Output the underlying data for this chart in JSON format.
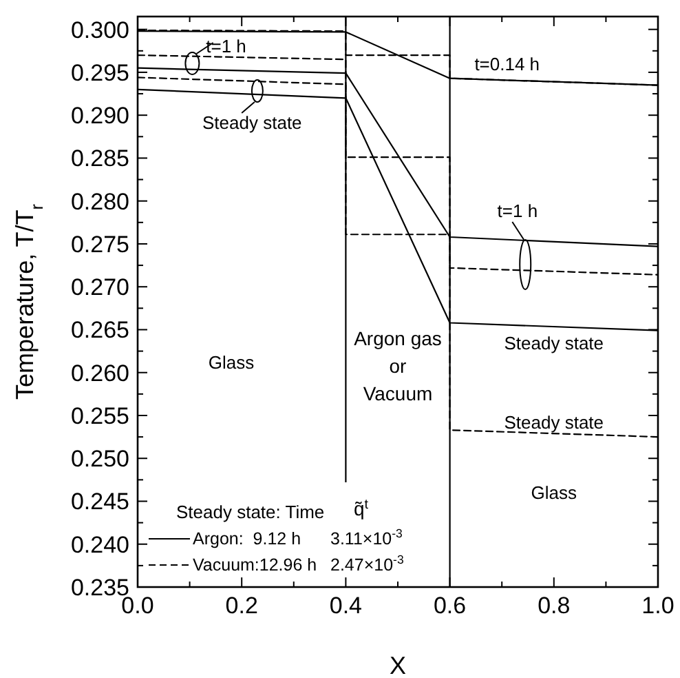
{
  "chart_data": {
    "type": "line",
    "xlabel": "X",
    "ylabel": "Temperature, T/T$_{r}$",
    "legend_title": "Steady state: Time",
    "legend": "bottom left",
    "grid": false,
    "marker": "none",
    "xlim": [
      0,
      1
    ],
    "ylim": [
      0.235,
      0.3015
    ],
    "xticks": [
      {
        "value": 0,
        "label": "0.0"
      },
      {
        "value": 0.1,
        "label": null
      },
      {
        "value": 0.2,
        "label": "0.2"
      },
      {
        "value": 0.3,
        "label": null
      },
      {
        "value": 0.4,
        "label": "0.4"
      },
      {
        "value": 0.5,
        "label": null
      },
      {
        "value": 0.6,
        "label": "0.6"
      },
      {
        "value": 0.7,
        "label": null
      },
      {
        "value": 0.8,
        "label": "0.8"
      },
      {
        "value": 0.9,
        "label": null
      },
      {
        "value": 1,
        "label": "1.0"
      }
    ],
    "yticks": [
      {
        "value": 0.235,
        "label": "0.235"
      },
      {
        "value": 0.2375,
        "label": null
      },
      {
        "value": 0.24,
        "label": "0.240"
      },
      {
        "value": 0.2425,
        "label": null
      },
      {
        "value": 0.245,
        "label": "0.245"
      },
      {
        "value": 0.2475,
        "label": null
      },
      {
        "value": 0.25,
        "label": "0.250"
      },
      {
        "value": 0.2525,
        "label": null
      },
      {
        "value": 0.255,
        "label": "0.255"
      },
      {
        "value": 0.2575,
        "label": null
      },
      {
        "value": 0.26,
        "label": "0.260"
      },
      {
        "value": 0.2625,
        "label": null
      },
      {
        "value": 0.265,
        "label": "0.265"
      },
      {
        "value": 0.2675,
        "label": null
      },
      {
        "value": 0.27,
        "label": "0.270"
      },
      {
        "value": 0.2725,
        "label": null
      },
      {
        "value": 0.275,
        "label": "0.275"
      },
      {
        "value": 0.2775,
        "label": null
      },
      {
        "value": 0.28,
        "label": "0.280"
      },
      {
        "value": 0.2825,
        "label": null
      },
      {
        "value": 0.285,
        "label": "0.285"
      },
      {
        "value": 0.2875,
        "label": null
      },
      {
        "value": 0.29,
        "label": "0.290"
      },
      {
        "value": 0.2925,
        "label": null
      },
      {
        "value": 0.295,
        "label": "0.295"
      },
      {
        "value": 0.2975,
        "label": null
      },
      {
        "value": 0.3,
        "label": "0.300"
      }
    ],
    "series": [
      {
        "color": "#000000",
        "line_style": "solid",
        "x": [
          0,
          0.4,
          0.6,
          1
        ],
        "values": [
          0.2998,
          0.2997,
          0.2943,
          0.2935
        ]
      },
      {
        "color": "#000000",
        "line_style": "solid",
        "x": [
          0,
          0.4,
          0.6,
          1
        ],
        "values": [
          0.2955,
          0.2949,
          0.2758,
          0.2747
        ]
      },
      {
        "name": "Argon:  9.12 h",
        "color": "#000000",
        "line_style": "solid",
        "x": [
          0,
          0.4,
          0.6,
          1
        ],
        "values": [
          0.293,
          0.292,
          0.2658,
          0.2649
        ]
      },
      {
        "color": "#000000",
        "line_style": "dashed",
        "x": [
          0,
          0.4,
          0.4,
          0.6,
          0.6,
          1
        ],
        "values": [
          0.2999,
          0.2998,
          0.297,
          0.297,
          0.2943,
          0.2935
        ]
      },
      {
        "color": "#000000",
        "line_style": "dashed",
        "x": [
          0,
          0.4,
          0.4,
          0.6,
          0.6,
          1
        ],
        "values": [
          0.297,
          0.2965,
          0.2851,
          0.2851,
          0.2722,
          0.2714
        ]
      },
      {
        "name": "Vacuum:12.96 h",
        "color": "#000000",
        "line_style": "dashed",
        "x": [
          0,
          0.4,
          0.4,
          0.6,
          0.6,
          1
        ],
        "values": [
          0.2944,
          0.2936,
          0.2761,
          0.2761,
          0.2533,
          0.2525
        ]
      }
    ],
    "ref_lines": [
      {
        "axis": "x",
        "value": 0.4,
        "color": "#000000"
      },
      {
        "axis": "x",
        "value": 0.6,
        "color": "#000000"
      }
    ],
    "annotations": [
      "t=1 h",
      "Steady state",
      "t=0.14 h",
      "t=1 h",
      "Steady state",
      "Steady state",
      "Glass",
      "Argon gas\nor\nVacuum",
      "Glass",
      "q̃$^{t}$",
      "3.11×10$^{-3}$",
      "2.47×10$^{-3}$"
    ]
  }
}
